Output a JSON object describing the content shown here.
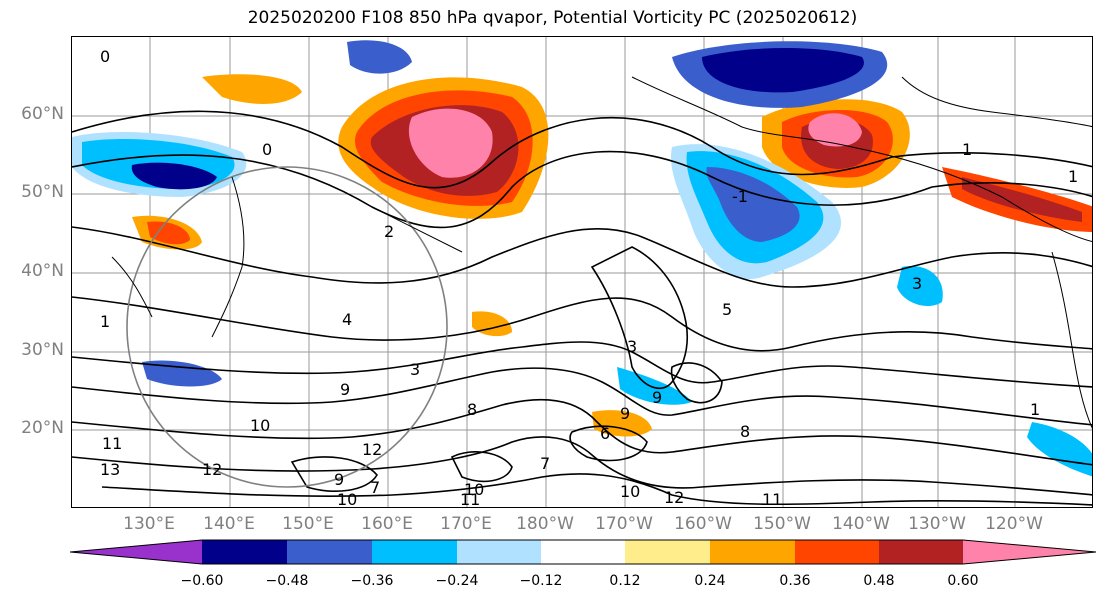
{
  "title": "2025020200 F108 850 hPa qvapor, Potential Vorticity PC (2025020612)",
  "lat_labels": [
    "60°N",
    "50°N",
    "40°N",
    "30°N",
    "20°N"
  ],
  "lon_labels": [
    "130°E",
    "140°E",
    "150°E",
    "160°E",
    "170°E",
    "180°W",
    "170°W",
    "160°W",
    "150°W",
    "140°W",
    "130°W",
    "120°W"
  ],
  "colorbar": {
    "tick_labels": [
      "−0.60",
      "−0.48",
      "−0.36",
      "−0.24",
      "−0.12",
      "0.12",
      "0.24",
      "0.36",
      "0.48",
      "0.60"
    ],
    "colors": [
      "#9932cc",
      "#00008b",
      "#3a5fcd",
      "#00bfff",
      "#b0e2ff",
      "#ffffff",
      "#ffec8b",
      "#ffa500",
      "#ff4500",
      "#b22222",
      "#ff82ab"
    ]
  },
  "contour_labels": [
    "0",
    "0",
    "1",
    "1",
    "-1",
    "2",
    "4",
    "3",
    "3",
    "9",
    "8",
    "5",
    "3",
    "10",
    "11",
    "12",
    "12",
    "13",
    "7",
    "9",
    "6",
    "9",
    "8",
    "7",
    "9",
    "10",
    "10",
    "11",
    "10",
    "12",
    "11",
    "1",
    "1"
  ]
}
